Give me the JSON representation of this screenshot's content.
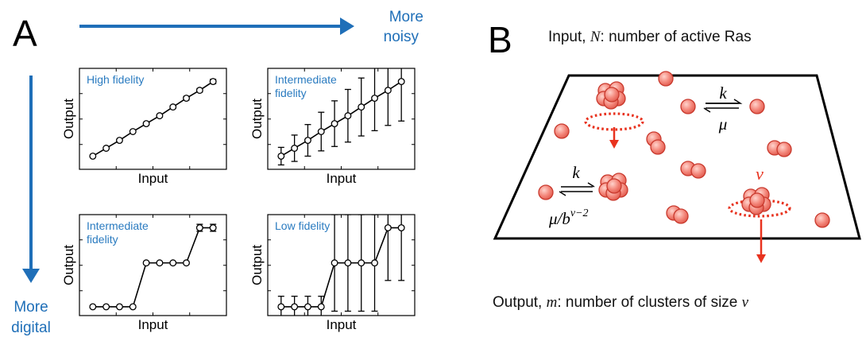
{
  "panel_a": {
    "letter": "A",
    "top_arrow_label": [
      "More",
      "noisy"
    ],
    "left_arrow_label": [
      "More",
      "digital"
    ],
    "plots": [
      {
        "title": [
          "High fidelity"
        ],
        "xlabel": "Input",
        "ylabel": "Output"
      },
      {
        "title": [
          "Intermediate",
          "fidelity"
        ],
        "xlabel": "Input",
        "ylabel": "Output"
      },
      {
        "title": [
          "Intermediate",
          "fidelity"
        ],
        "xlabel": "Input",
        "ylabel": "Output"
      },
      {
        "title": [
          "Low fidelity"
        ],
        "xlabel": "Input",
        "ylabel": "Output"
      }
    ]
  },
  "panel_b": {
    "letter": "B",
    "input_label": {
      "prefix": "Input, ",
      "var": "N",
      "suffix": ": number of active Ras"
    },
    "output_label": {
      "prefix": "Output, ",
      "var": "m",
      "suffix": ": number of clusters of size ",
      "var2": "ν"
    },
    "reaction_top": {
      "forward": "k",
      "backward": "μ"
    },
    "reaction_left": {
      "forward": "k",
      "backward_main": "μ/b",
      "backward_sup": "ν−2"
    },
    "nu_label": "ν",
    "colors": {
      "blue": "#1f6fb8",
      "red_arrow": "#e8321e",
      "particle": "#f08a80",
      "particle_edge": "#d93a2f"
    }
  },
  "chart_data": [
    {
      "type": "line",
      "title": "High fidelity",
      "xlabel": "Input",
      "ylabel": "Output",
      "x": [
        1,
        2,
        3,
        4,
        5,
        6,
        7,
        8,
        9,
        10
      ],
      "y": [
        0.05,
        0.14,
        0.23,
        0.33,
        0.42,
        0.51,
        0.61,
        0.71,
        0.8,
        0.9
      ],
      "err": [
        0.01,
        0.01,
        0.01,
        0.01,
        0.01,
        0.015,
        0.015,
        0.02,
        0.02,
        0.025
      ],
      "ylim": [
        -0.1,
        1.05
      ],
      "xlim": [
        0,
        11
      ]
    },
    {
      "type": "line",
      "title": "Intermediate fidelity",
      "xlabel": "Input",
      "ylabel": "Output",
      "x": [
        1,
        2,
        3,
        4,
        5,
        6,
        7,
        8,
        9,
        10
      ],
      "y": [
        0.05,
        0.14,
        0.23,
        0.33,
        0.42,
        0.51,
        0.61,
        0.71,
        0.8,
        0.9
      ],
      "err": [
        0.1,
        0.15,
        0.18,
        0.22,
        0.26,
        0.3,
        0.33,
        0.37,
        0.4,
        0.45
      ],
      "ylim": [
        -0.1,
        1.05
      ],
      "xlim": [
        0,
        11
      ]
    },
    {
      "type": "line",
      "title": "Intermediate fidelity",
      "xlabel": "Input",
      "ylabel": "Output",
      "x": [
        1,
        2,
        3,
        4,
        5,
        6,
        7,
        8,
        9,
        10
      ],
      "y": [
        0.0,
        0.0,
        0.0,
        0.0,
        0.5,
        0.5,
        0.5,
        0.5,
        0.9,
        0.9
      ],
      "err": [
        0.01,
        0.01,
        0.01,
        0.01,
        0.015,
        0.015,
        0.015,
        0.015,
        0.04,
        0.04
      ],
      "ylim": [
        -0.1,
        1.05
      ],
      "xlim": [
        0,
        11
      ]
    },
    {
      "type": "line",
      "title": "Low fidelity",
      "xlabel": "Input",
      "ylabel": "Output",
      "x": [
        1,
        2,
        3,
        4,
        5,
        6,
        7,
        8,
        9,
        10
      ],
      "y": [
        0.0,
        0.0,
        0.0,
        0.0,
        0.5,
        0.5,
        0.5,
        0.5,
        0.9,
        0.9
      ],
      "err": [
        0.12,
        0.12,
        0.12,
        0.12,
        0.55,
        0.55,
        0.55,
        0.55,
        0.6,
        0.6
      ],
      "ylim": [
        -0.1,
        1.05
      ],
      "xlim": [
        0,
        11
      ]
    }
  ]
}
